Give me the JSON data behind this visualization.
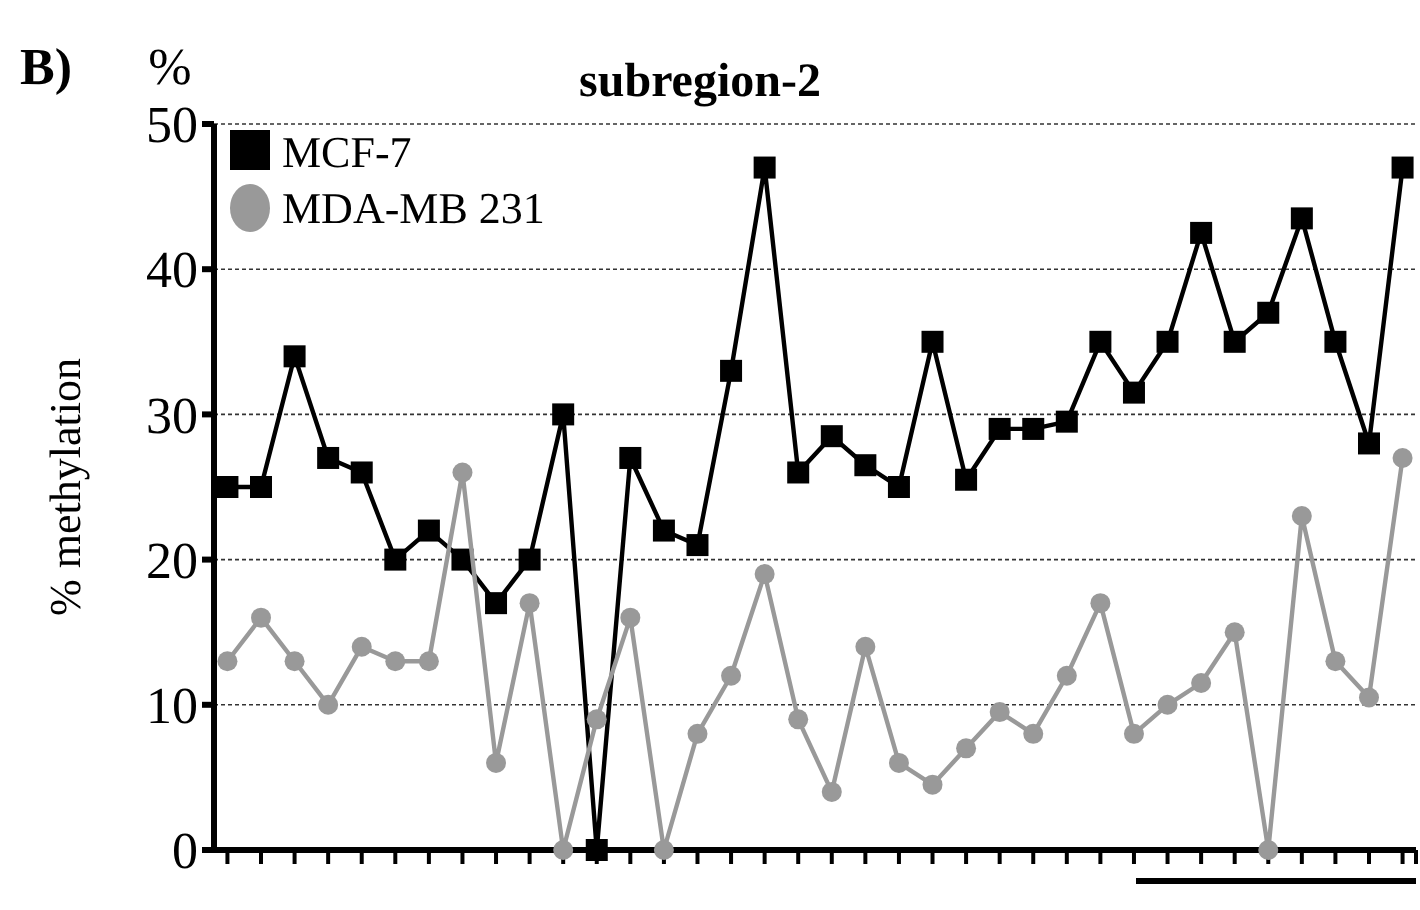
{
  "chart_data": {
    "type": "line",
    "title": "subregion-2",
    "ylabel": "% methylation",
    "annotations": [
      "B)",
      "%"
    ],
    "categories": [
      null,
      null,
      null,
      null,
      null,
      null,
      null,
      null,
      null,
      null,
      null,
      null,
      null,
      null,
      null,
      null,
      null,
      null,
      null,
      null,
      null,
      null,
      null,
      null,
      null,
      null,
      null,
      null,
      null,
      null,
      null,
      null,
      null,
      null,
      null,
      null
    ],
    "series": [
      {
        "name": "MCF-7",
        "color": "#000000",
        "marker": "square",
        "values": [
          25,
          25,
          34,
          27,
          26,
          20,
          22,
          20,
          17,
          20,
          30,
          0,
          27,
          22,
          21,
          33,
          47,
          26,
          28.5,
          26.5,
          25,
          35,
          25.5,
          29,
          29,
          29.5,
          35,
          31.5,
          35,
          42.5,
          35,
          37,
          43.5,
          35,
          28,
          47
        ]
      },
      {
        "name": "MDA-MB 231",
        "color": "#999999",
        "marker": "circle",
        "values": [
          13,
          16,
          13,
          10,
          14,
          13,
          13,
          26,
          6,
          17,
          0,
          9,
          16,
          0,
          8,
          12,
          19,
          9,
          4,
          14,
          6,
          4.5,
          7,
          9.5,
          8,
          12,
          17,
          8,
          10,
          11.5,
          15,
          0,
          23,
          13,
          10.5,
          27
        ]
      }
    ],
    "ylim": [
      0,
      50
    ],
    "yticks": [
      0,
      10,
      20,
      30,
      40,
      50
    ],
    "grid": "y",
    "legend": "top left"
  }
}
